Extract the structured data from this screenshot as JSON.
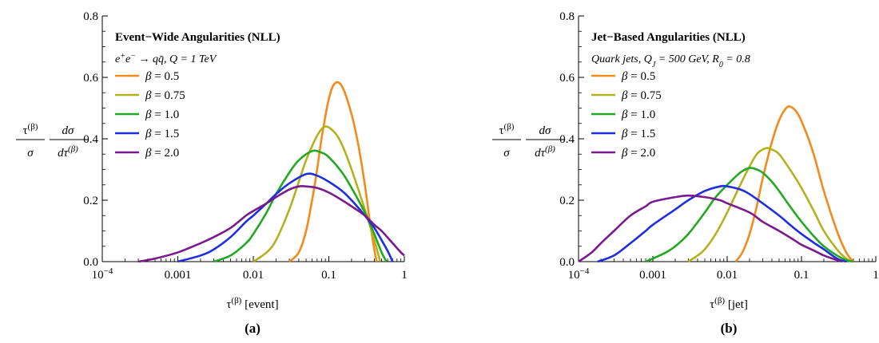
{
  "chart_data": [
    {
      "type": "line",
      "panel": "(a)",
      "title": "Event−Wide Angularities (NLL)",
      "subtitle_html": "e<tspan baseline-shift='super' font-size='10'>+</tspan>e<tspan baseline-shift='super' font-size='10'>−</tspan> → qq̄, Q = 1 TeV",
      "xlabel": "τ(β) [event]",
      "ylabel": "τ(β)/σ dσ/dτ(β)",
      "xscale": "log",
      "xlim": [
        0.0001,
        1
      ],
      "ylim": [
        0,
        0.8
      ],
      "xtick_labels": [
        "10−4",
        "0.001",
        "0.01",
        "0.1",
        "1"
      ],
      "ytick_labels": [
        "0.0",
        "0.2",
        "0.4",
        "0.6",
        "0.8"
      ],
      "legend_position": "top-left",
      "series": [
        {
          "name": "β = 0.5",
          "color": "#f28a1c",
          "x": [
            0.03,
            0.04,
            0.05,
            0.06,
            0.07,
            0.08,
            0.1,
            0.12,
            0.15,
            0.2,
            0.25,
            0.3,
            0.35,
            0.4,
            0.43
          ],
          "y": [
            0.0,
            0.03,
            0.1,
            0.2,
            0.3,
            0.4,
            0.53,
            0.58,
            0.57,
            0.48,
            0.37,
            0.25,
            0.13,
            0.04,
            0.0
          ]
        },
        {
          "name": "β = 0.75",
          "color": "#b5b11e",
          "x": [
            0.01,
            0.015,
            0.02,
            0.03,
            0.04,
            0.05,
            0.07,
            0.09,
            0.12,
            0.15,
            0.2,
            0.3,
            0.4,
            0.48
          ],
          "y": [
            0.0,
            0.03,
            0.07,
            0.17,
            0.26,
            0.33,
            0.41,
            0.44,
            0.42,
            0.38,
            0.3,
            0.17,
            0.07,
            0.0
          ]
        },
        {
          "name": "β = 1.0",
          "color": "#23a823",
          "x": [
            0.003,
            0.005,
            0.008,
            0.01,
            0.015,
            0.02,
            0.03,
            0.04,
            0.06,
            0.08,
            0.1,
            0.15,
            0.2,
            0.3,
            0.4,
            0.5,
            0.58
          ],
          "y": [
            0.0,
            0.02,
            0.06,
            0.09,
            0.16,
            0.22,
            0.29,
            0.33,
            0.36,
            0.355,
            0.34,
            0.29,
            0.24,
            0.16,
            0.09,
            0.03,
            0.0
          ]
        },
        {
          "name": "β = 1.5",
          "color": "#1d2fe0",
          "x": [
            0.001,
            0.002,
            0.003,
            0.005,
            0.008,
            0.01,
            0.015,
            0.02,
            0.03,
            0.05,
            0.07,
            0.1,
            0.15,
            0.2,
            0.3,
            0.4,
            0.5,
            0.6,
            0.7
          ],
          "y": [
            0.0,
            0.02,
            0.04,
            0.08,
            0.13,
            0.15,
            0.19,
            0.22,
            0.255,
            0.285,
            0.28,
            0.26,
            0.23,
            0.2,
            0.15,
            0.11,
            0.07,
            0.035,
            0.0
          ]
        },
        {
          "name": "β = 2.0",
          "color": "#7a1a8c",
          "x": [
            0.0003,
            0.0005,
            0.001,
            0.002,
            0.003,
            0.005,
            0.008,
            0.01,
            0.015,
            0.02,
            0.03,
            0.04,
            0.05,
            0.07,
            0.1,
            0.15,
            0.2,
            0.3,
            0.4,
            0.5,
            0.7,
            0.9,
            1.0
          ],
          "y": [
            0.0,
            0.01,
            0.03,
            0.06,
            0.08,
            0.11,
            0.15,
            0.165,
            0.19,
            0.21,
            0.235,
            0.245,
            0.245,
            0.24,
            0.225,
            0.2,
            0.18,
            0.15,
            0.12,
            0.1,
            0.06,
            0.03,
            0.02
          ]
        }
      ]
    },
    {
      "type": "line",
      "panel": "(b)",
      "title": "Jet−Based Angularities (NLL)",
      "subtitle_html": "Quark jets, Q<tspan baseline-shift='sub' font-size='10'>J</tspan> = 500 GeV, R<tspan baseline-shift='sub' font-size='10'>0</tspan> = 0.8",
      "xlabel": "τ(β) [jet]",
      "ylabel": "τ(β)/σ dσ/dτ(β)",
      "xscale": "log",
      "xlim": [
        0.0001,
        1
      ],
      "ylim": [
        0,
        0.8
      ],
      "xtick_labels": [
        "10−4",
        "0.001",
        "0.01",
        "0.1",
        "1"
      ],
      "ytick_labels": [
        "0.0",
        "0.2",
        "0.4",
        "0.6",
        "0.8"
      ],
      "legend_position": "top-left",
      "series": [
        {
          "name": "β = 0.5",
          "color": "#f28a1c",
          "x": [
            0.013,
            0.016,
            0.02,
            0.025,
            0.03,
            0.04,
            0.05,
            0.06,
            0.07,
            0.09,
            0.12,
            0.15,
            0.2,
            0.3,
            0.4,
            0.5
          ],
          "y": [
            0.0,
            0.03,
            0.09,
            0.18,
            0.27,
            0.39,
            0.46,
            0.495,
            0.505,
            0.48,
            0.41,
            0.34,
            0.23,
            0.1,
            0.03,
            0.0
          ]
        },
        {
          "name": "β = 0.75",
          "color": "#b5b11e",
          "x": [
            0.003,
            0.004,
            0.005,
            0.007,
            0.01,
            0.015,
            0.02,
            0.025,
            0.03,
            0.035,
            0.04,
            0.05,
            0.07,
            0.1,
            0.15,
            0.2,
            0.3,
            0.4,
            0.5
          ],
          "y": [
            0.0,
            0.02,
            0.04,
            0.09,
            0.16,
            0.25,
            0.31,
            0.35,
            0.365,
            0.37,
            0.365,
            0.35,
            0.3,
            0.24,
            0.16,
            0.1,
            0.04,
            0.01,
            0.0
          ]
        },
        {
          "name": "β = 1.0",
          "color": "#23a823",
          "x": [
            0.0008,
            0.001,
            0.0015,
            0.002,
            0.003,
            0.005,
            0.007,
            0.01,
            0.015,
            0.02,
            0.025,
            0.03,
            0.04,
            0.05,
            0.07,
            0.1,
            0.15,
            0.2,
            0.3,
            0.4,
            0.5
          ],
          "y": [
            0.0,
            0.01,
            0.03,
            0.05,
            0.09,
            0.16,
            0.21,
            0.25,
            0.29,
            0.305,
            0.3,
            0.29,
            0.26,
            0.23,
            0.18,
            0.13,
            0.08,
            0.05,
            0.02,
            0.005,
            0.0
          ]
        },
        {
          "name": "β = 1.5",
          "color": "#1d2fe0",
          "x": [
            0.00018,
            0.0003,
            0.0005,
            0.0008,
            0.001,
            0.002,
            0.003,
            0.005,
            0.008,
            0.01,
            0.015,
            0.02,
            0.03,
            0.05,
            0.07,
            0.1,
            0.15,
            0.2,
            0.3,
            0.4
          ],
          "y": [
            0.0,
            0.02,
            0.06,
            0.1,
            0.12,
            0.17,
            0.2,
            0.23,
            0.245,
            0.245,
            0.235,
            0.22,
            0.19,
            0.15,
            0.12,
            0.09,
            0.06,
            0.04,
            0.01,
            0.0
          ]
        },
        {
          "name": "β = 2.0",
          "color": "#7a1a8c",
          "x": [
            0.0001,
            0.00015,
            0.0002,
            0.0003,
            0.0005,
            0.0008,
            0.001,
            0.002,
            0.003,
            0.005,
            0.008,
            0.01,
            0.02,
            0.03,
            0.05,
            0.08,
            0.1,
            0.15,
            0.2,
            0.3,
            0.35
          ],
          "y": [
            0.0,
            0.03,
            0.06,
            0.1,
            0.15,
            0.18,
            0.195,
            0.21,
            0.215,
            0.21,
            0.2,
            0.19,
            0.16,
            0.13,
            0.1,
            0.07,
            0.055,
            0.035,
            0.02,
            0.005,
            0.0
          ]
        }
      ]
    }
  ]
}
